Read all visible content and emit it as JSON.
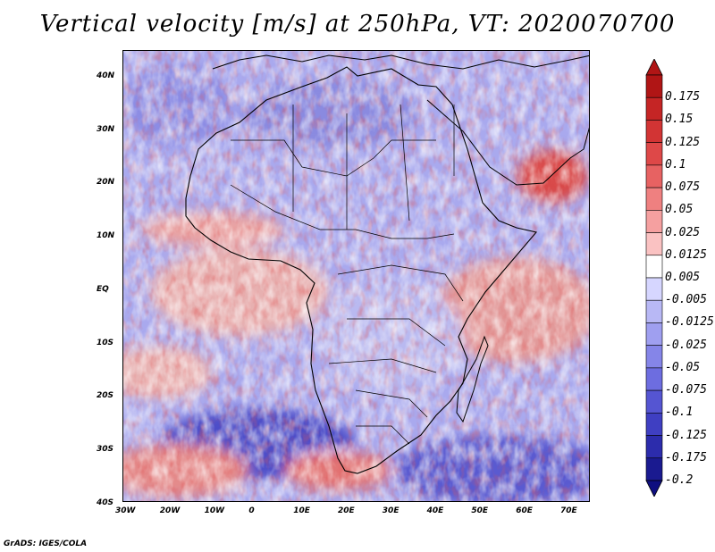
{
  "title": "Vertical velocity [m/s] at 250hPa, VT: 2020070700",
  "credit": "GrADS: IGES/COLA",
  "map": {
    "lat_labels": [
      "40N",
      "30N",
      "20N",
      "10N",
      "EQ",
      "10S",
      "20S",
      "30S",
      "40S"
    ],
    "lon_labels": [
      "30W",
      "20W",
      "10W",
      "0",
      "10E",
      "20E",
      "30E",
      "40E",
      "50E",
      "60E",
      "70E"
    ],
    "lat_range": [
      -40,
      44
    ],
    "lon_range": [
      -30,
      75
    ]
  },
  "colorbar": {
    "labels": [
      "0.175",
      "0.15",
      "0.125",
      "0.1",
      "0.075",
      "0.05",
      "0.025",
      "0.0125",
      "0.005",
      "-0.005",
      "-0.0125",
      "-0.025",
      "-0.05",
      "-0.075",
      "-0.1",
      "-0.125",
      "-0.175",
      "-0.2"
    ],
    "colors": [
      "#b01515",
      "#c52525",
      "#d23434",
      "#de4848",
      "#e76262",
      "#ef8080",
      "#f5a0a0",
      "#fac2c2",
      "#ffffff",
      "#d6d6ff",
      "#b8b8f5",
      "#9f9ff0",
      "#8585e8",
      "#6d6de0",
      "#5555d2",
      "#3f3fc2",
      "#2c2cac",
      "#1a1a90"
    ]
  }
}
